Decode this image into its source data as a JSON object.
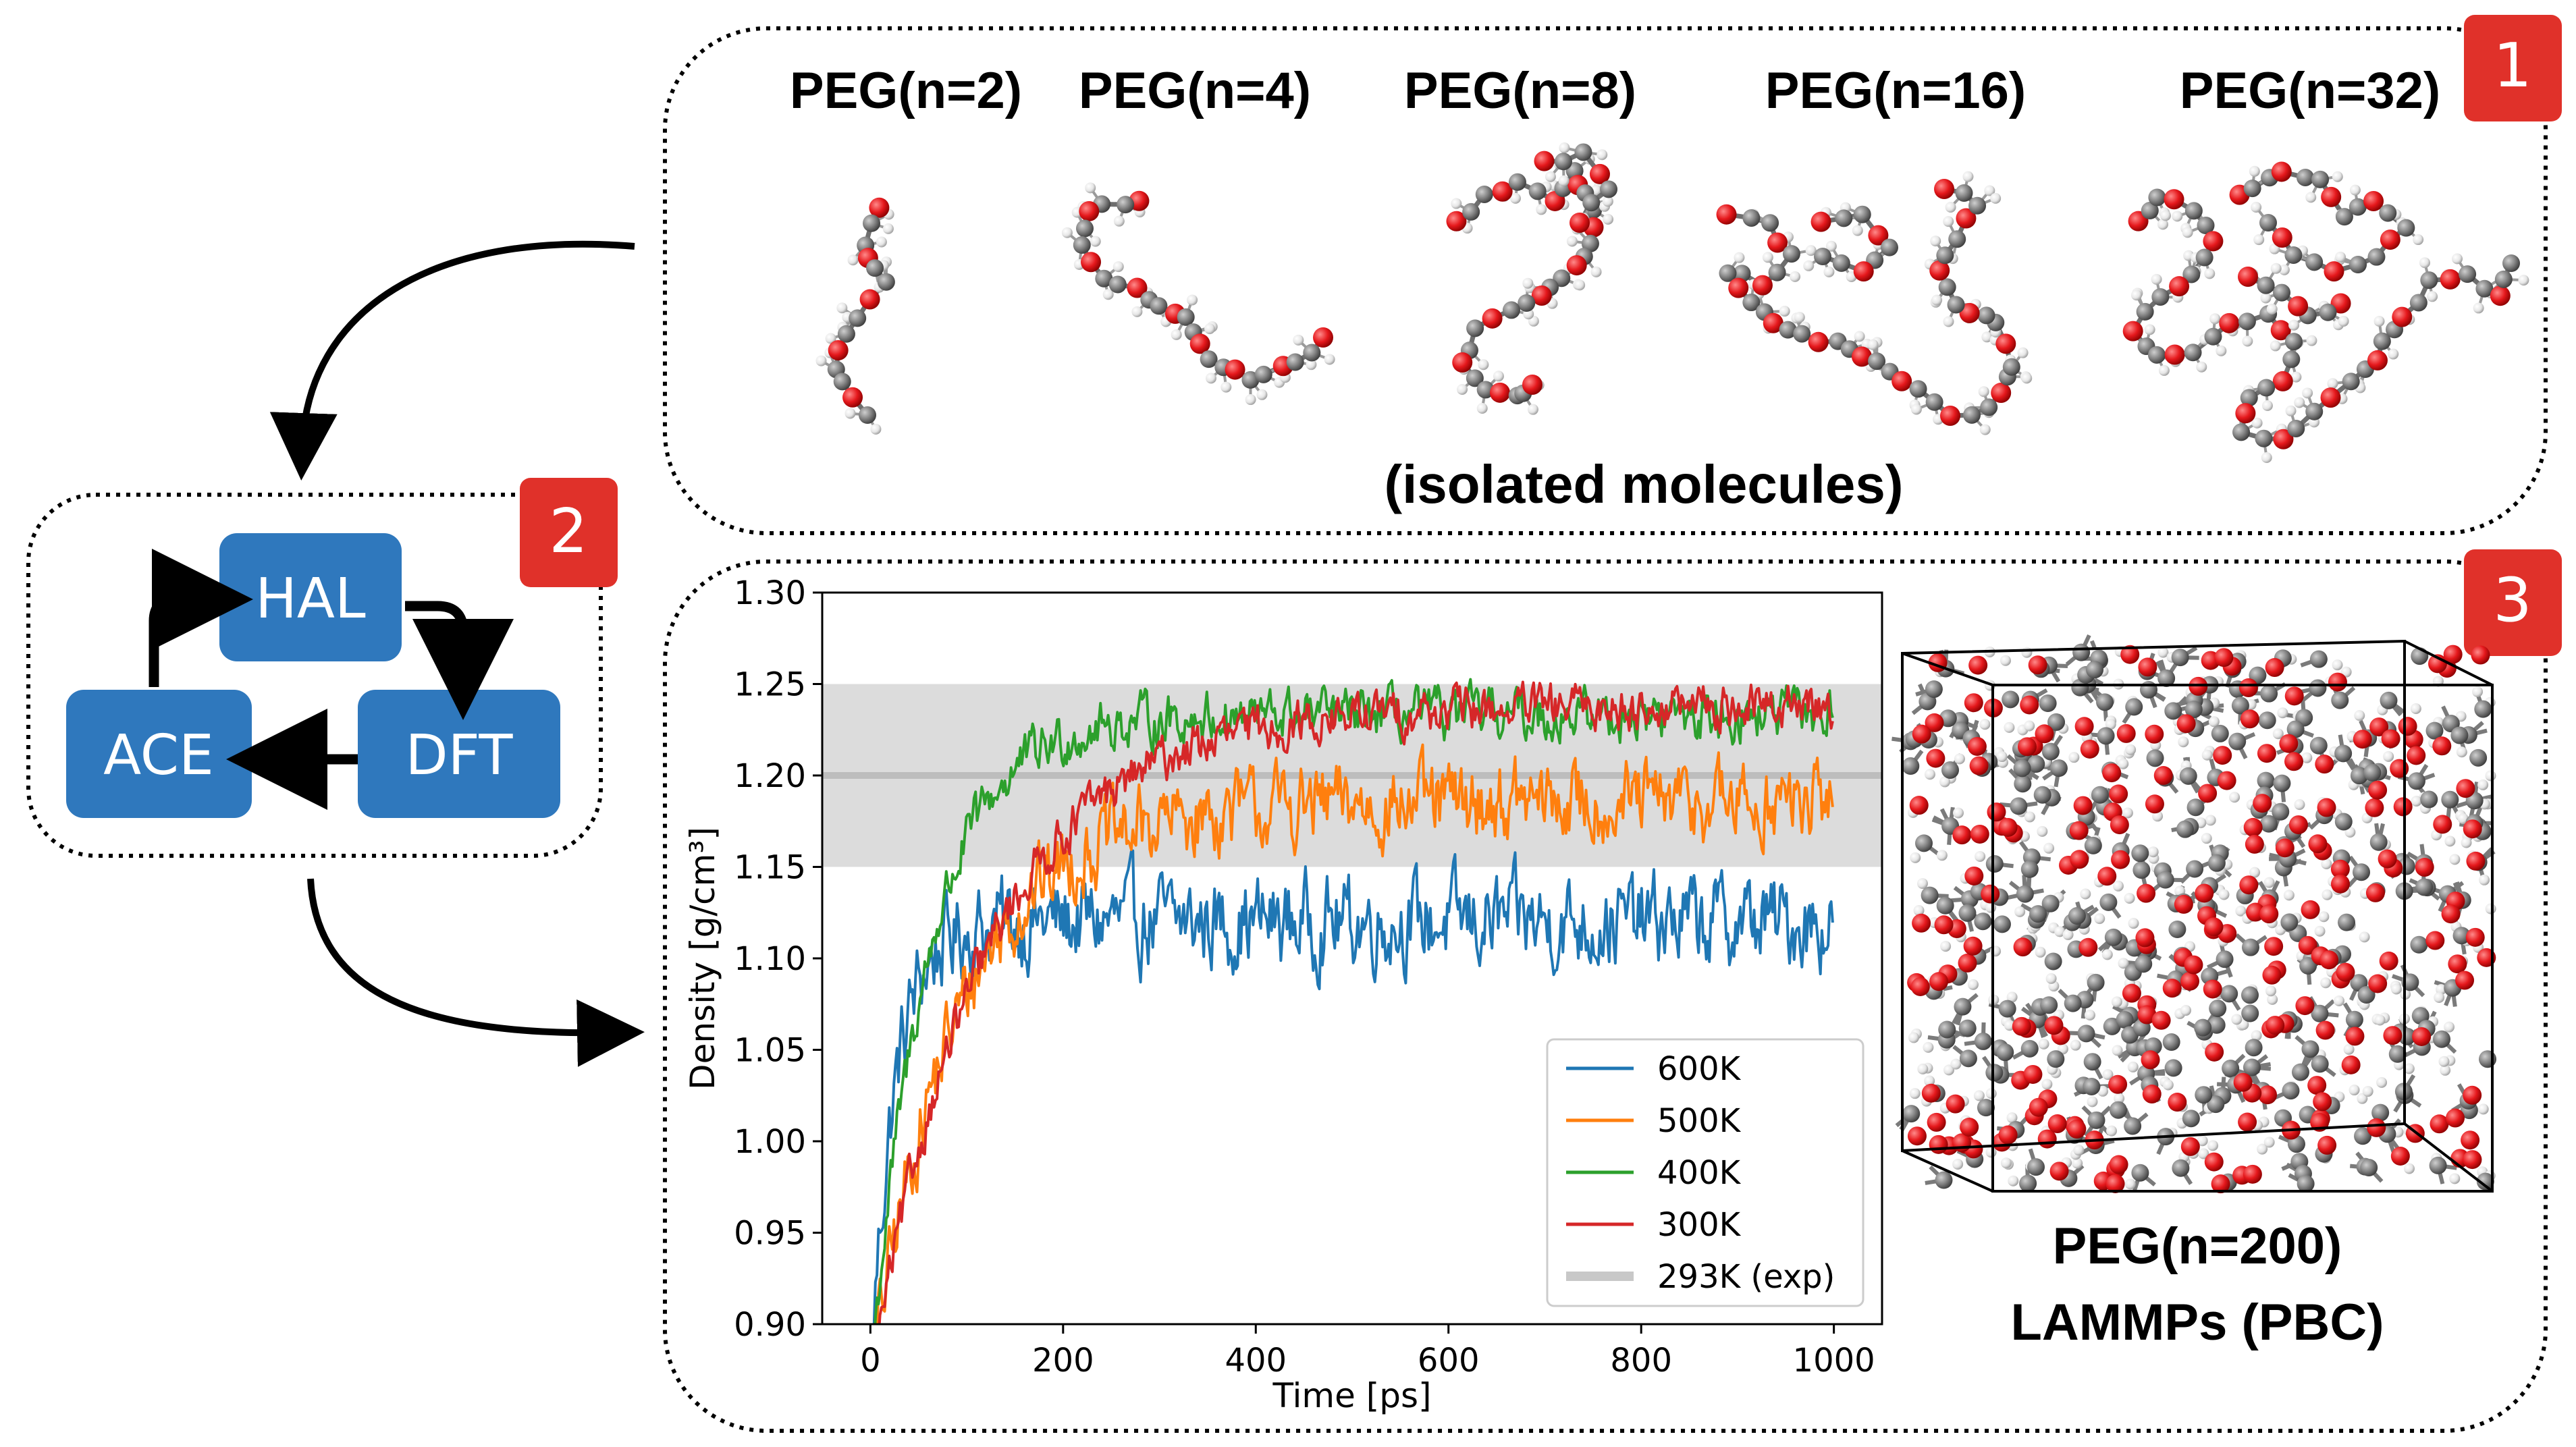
{
  "panel1": {
    "badge": "1",
    "labels": [
      "PEG(n=2)",
      "PEG(n=4)",
      "PEG(n=8)",
      "PEG(n=16)",
      "PEG(n=32)"
    ],
    "caption": "(isolated molecules)"
  },
  "panel2": {
    "badge": "2",
    "nodes": {
      "hal": "HAL",
      "ace": "ACE",
      "dft": "DFT"
    }
  },
  "panel3": {
    "badge": "3",
    "system_label": "PEG(n=200)",
    "engine_label": "LAMMPs (PBC)"
  },
  "colors": {
    "badge": "#e0312a",
    "node": "#2f78bd",
    "oxygen": "#e5181c",
    "carbon": "#7f7f7f",
    "hydrogen": "#e8e8e8"
  },
  "chart_data": {
    "type": "line",
    "xlabel": "Time [ps]",
    "ylabel": "Density [g/cm³]",
    "xlim": [
      -50,
      1050
    ],
    "ylim": [
      0.9,
      1.3
    ],
    "xticks": [
      "0",
      "200",
      "400",
      "600",
      "800",
      "1000"
    ],
    "yticks": [
      "0.90",
      "0.95",
      "1.00",
      "1.05",
      "1.10",
      "1.15",
      "1.20",
      "1.25",
      "1.30"
    ],
    "legend_position": "lower-right",
    "series": [
      {
        "name": "600K",
        "color": "#1f77b4",
        "plateau": 1.12,
        "noise": 0.045,
        "rise": 25
      },
      {
        "name": "500K",
        "color": "#ff7f0e",
        "plateau": 1.185,
        "noise": 0.04,
        "rise": 90
      },
      {
        "name": "400K",
        "color": "#2ca02c",
        "plateau": 1.233,
        "noise": 0.025,
        "rise": 60
      },
      {
        "name": "300K",
        "color": "#d62728",
        "plateau": 1.238,
        "noise": 0.022,
        "rise": 120
      }
    ],
    "reference": {
      "name": "293K (exp)",
      "value": 1.2,
      "band": [
        1.15,
        1.25
      ],
      "color": "#c8c8c8"
    }
  }
}
